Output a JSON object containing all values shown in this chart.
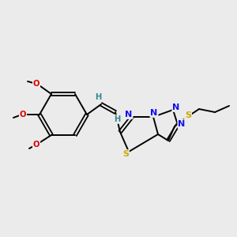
{
  "background_color": "#ebebeb",
  "atom_colors": {
    "C": "#000000",
    "N": "#1010ee",
    "S": "#ccaa00",
    "O": "#dd0000",
    "H": "#338888"
  },
  "bond_color": "#000000",
  "figsize": [
    3.0,
    3.0
  ],
  "dpi": 100
}
